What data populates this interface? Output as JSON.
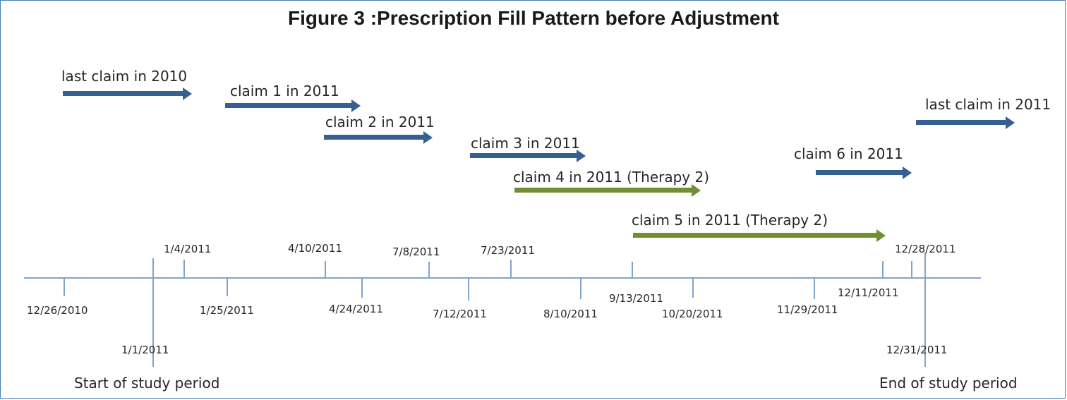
{
  "title": "Figure 3 :Prescription Fill Pattern before Adjustment",
  "claims": [
    {
      "label": "last claim in 2010"
    },
    {
      "label": "claim 1 in 2011"
    },
    {
      "label": "claim 2 in 2011"
    },
    {
      "label": "claim 3 in 2011"
    },
    {
      "label": "claim 4 in 2011 (Therapy 2)"
    },
    {
      "label": "claim 5 in 2011 (Therapy 2)"
    },
    {
      "label": "claim 6 in 2011"
    },
    {
      "label": "last claim in 2011"
    }
  ],
  "dates": [
    "12/26/2010",
    "1/1/2011",
    "1/4/2011",
    "1/25/2011",
    "4/10/2011",
    "4/24/2011",
    "7/8/2011",
    "7/12/2011",
    "7/23/2011",
    "8/10/2011",
    "9/13/2011",
    "10/20/2011",
    "11/29/2011",
    "12/11/2011",
    "12/28/2011",
    "12/31/2011"
  ],
  "captions": {
    "start": "Start of study period",
    "end": "End of study period"
  },
  "colors": {
    "claim_arrow": "#376092",
    "therapy2_arrow": "#6f9030",
    "timeline": "#7fa5cc",
    "border": "#4a7ebb"
  }
}
